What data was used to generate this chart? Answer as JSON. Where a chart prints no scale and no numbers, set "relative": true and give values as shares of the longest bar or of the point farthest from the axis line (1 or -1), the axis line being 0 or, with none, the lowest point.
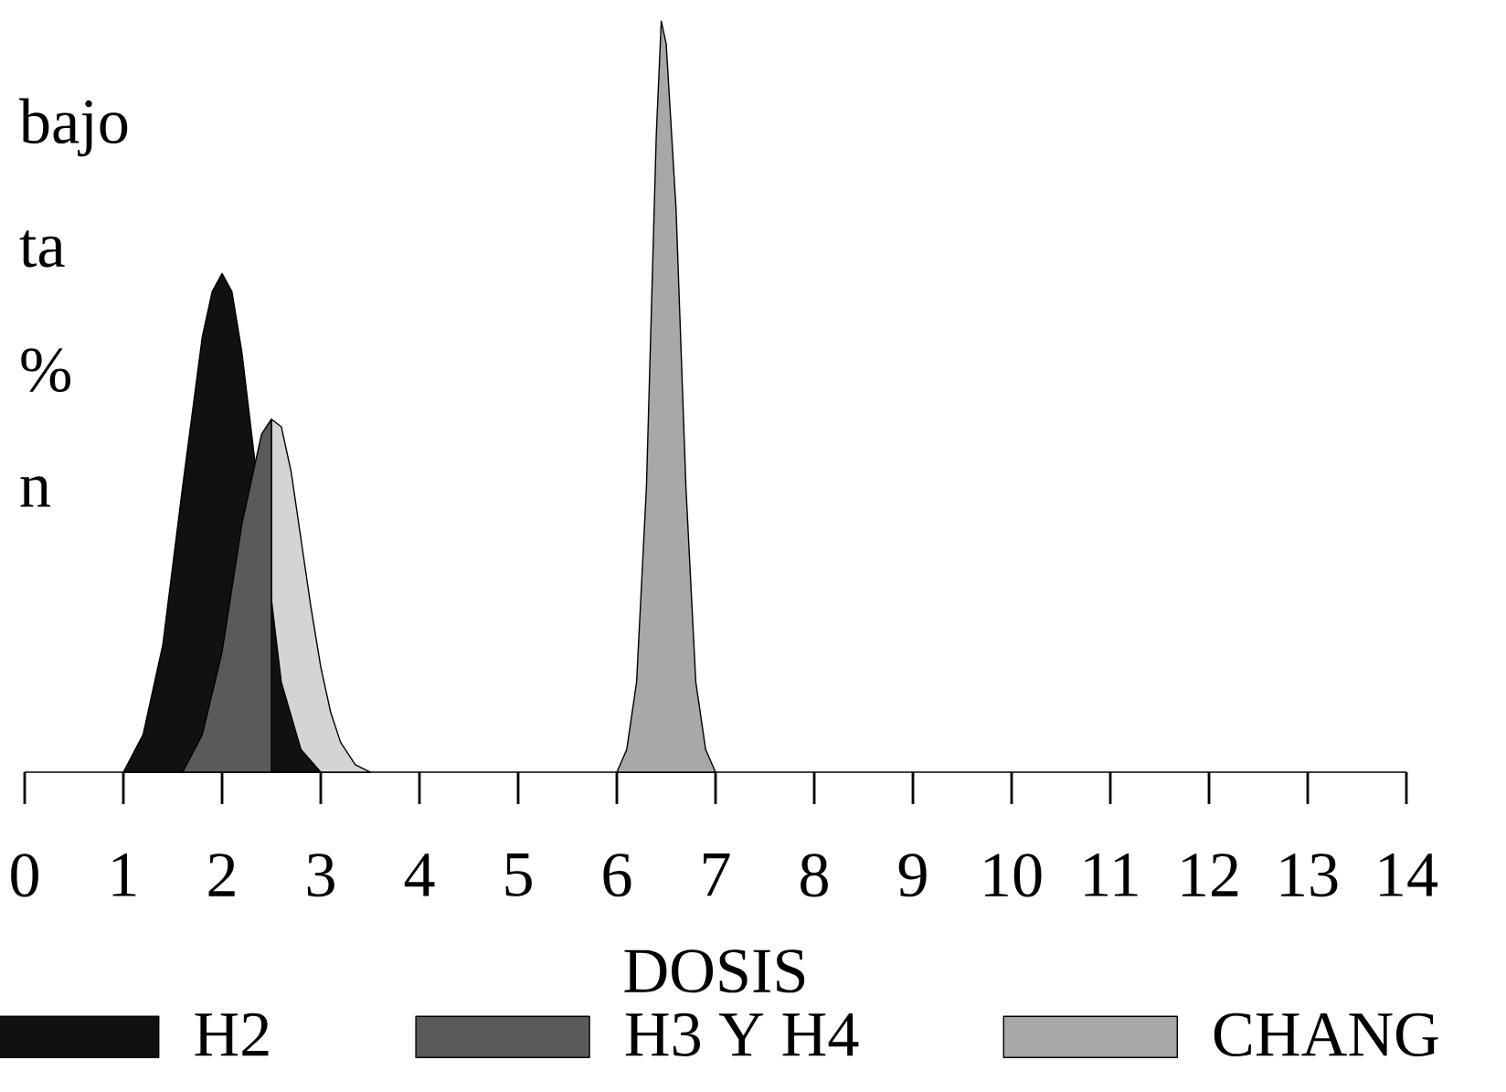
{
  "chart_data": {
    "type": "area",
    "relative": true,
    "xlabel": "DOSIS",
    "xlim": [
      0,
      14
    ],
    "xticks": [
      0,
      1,
      2,
      3,
      4,
      5,
      6,
      7,
      8,
      9,
      10,
      11,
      12,
      13,
      14
    ],
    "annotations": [
      "bajo",
      "ta",
      "%",
      "n"
    ],
    "legend": "bottom",
    "grid": false,
    "series": [
      {
        "color": "#d4d4d4",
        "x": [
          2.5,
          2.6,
          2.7,
          2.8,
          2.9,
          3.0,
          3.1,
          3.2,
          3.35,
          3.5
        ],
        "values": [
          0.47,
          0.46,
          0.4,
          0.31,
          0.22,
          0.14,
          0.08,
          0.04,
          0.01,
          0
        ]
      },
      {
        "name": "H2",
        "color": "#111111",
        "x": [
          1.0,
          1.2,
          1.4,
          1.6,
          1.8,
          1.9,
          2.0,
          2.1,
          2.2,
          2.4,
          2.6,
          2.8,
          3.0
        ],
        "values": [
          0,
          0.05,
          0.17,
          0.38,
          0.58,
          0.64,
          0.664,
          0.64,
          0.56,
          null,
          0.12,
          0.03,
          0
        ]
      },
      {
        "name": "H3 Y H4",
        "color": "#5a5a5a",
        "x": [
          1.6,
          1.8,
          2.0,
          2.2,
          2.4,
          2.5
        ],
        "values": [
          0,
          0.05,
          0.16,
          0.33,
          0.45,
          0.47
        ]
      },
      {
        "name": "CHANG",
        "color": "#a8a8a8",
        "x": [
          6.0,
          6.1,
          6.2,
          6.3,
          6.4,
          6.45,
          6.5,
          6.6,
          6.7,
          6.8,
          6.9,
          7.0
        ],
        "values": [
          0,
          0.03,
          0.12,
          0.38,
          0.85,
          1.0,
          0.97,
          0.75,
          0.38,
          0.12,
          0.03,
          0
        ]
      }
    ]
  }
}
